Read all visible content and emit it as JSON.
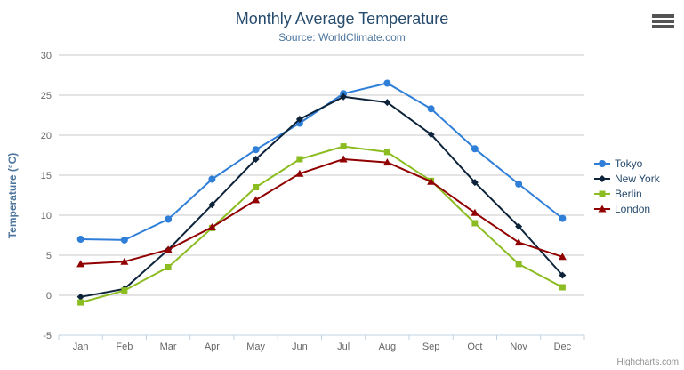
{
  "header": {
    "title": "Monthly Average Temperature",
    "subtitle": "Source: WorldClimate.com"
  },
  "credits": {
    "label": "Highcharts.com"
  },
  "context_menu": {
    "icon": "hamburger-icon"
  },
  "colors": {
    "title": "#274b6d",
    "subtitle": "#4d759e",
    "axis_title": "#4d759e",
    "tick_label": "#666666",
    "gridline": "#c8c8c8",
    "axis_line": "#c0d0e0",
    "legend_text": "#274b6d",
    "credits": "#909090"
  },
  "chart_data": {
    "type": "line",
    "title": "Monthly Average Temperature",
    "subtitle": "Source: WorldClimate.com",
    "xlabel": "",
    "ylabel": "Temperature (°C)",
    "ylim": [
      -5,
      30
    ],
    "ytick_step": 5,
    "grid": true,
    "legend_position": "right",
    "categories": [
      "Jan",
      "Feb",
      "Mar",
      "Apr",
      "May",
      "Jun",
      "Jul",
      "Aug",
      "Sep",
      "Oct",
      "Nov",
      "Dec"
    ],
    "series": [
      {
        "name": "Tokyo",
        "color": "#2f7ed8",
        "marker": "circle",
        "values": [
          7.0,
          6.9,
          9.5,
          14.5,
          18.2,
          21.5,
          25.2,
          26.5,
          23.3,
          18.3,
          13.9,
          9.6
        ]
      },
      {
        "name": "New York",
        "color": "#0d233a",
        "marker": "diamond",
        "values": [
          -0.2,
          0.8,
          5.7,
          11.3,
          17.0,
          22.0,
          24.8,
          24.1,
          20.1,
          14.1,
          8.6,
          2.5
        ]
      },
      {
        "name": "Berlin",
        "color": "#8bbc21",
        "marker": "square",
        "values": [
          -0.9,
          0.6,
          3.5,
          8.4,
          13.5,
          17.0,
          18.6,
          17.9,
          14.3,
          9.0,
          3.9,
          1.0
        ]
      },
      {
        "name": "London",
        "color": "#910000",
        "marker": "triangle",
        "values": [
          3.9,
          4.2,
          5.7,
          8.5,
          11.9,
          15.2,
          17.0,
          16.6,
          14.2,
          10.3,
          6.6,
          4.8
        ]
      }
    ]
  }
}
